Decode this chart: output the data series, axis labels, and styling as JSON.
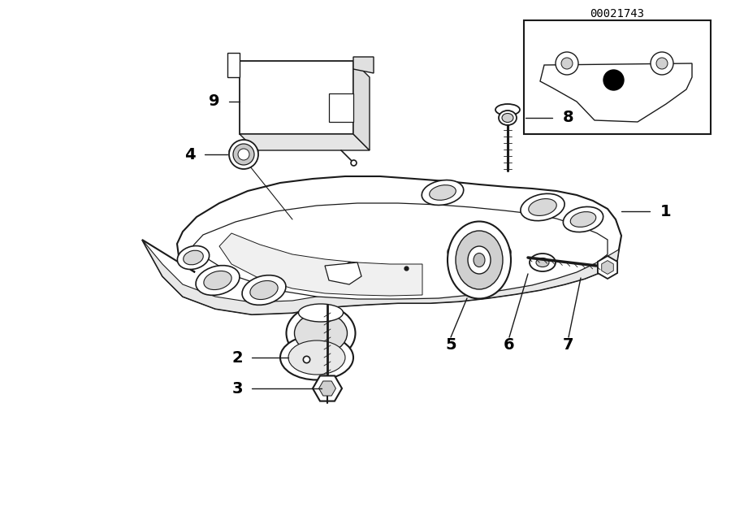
{
  "bg_color": "#ffffff",
  "line_color": "#1a1a1a",
  "text_color": "#000000",
  "part_number": "00021743",
  "figsize": [
    9.0,
    6.35
  ],
  "dpi": 100
}
